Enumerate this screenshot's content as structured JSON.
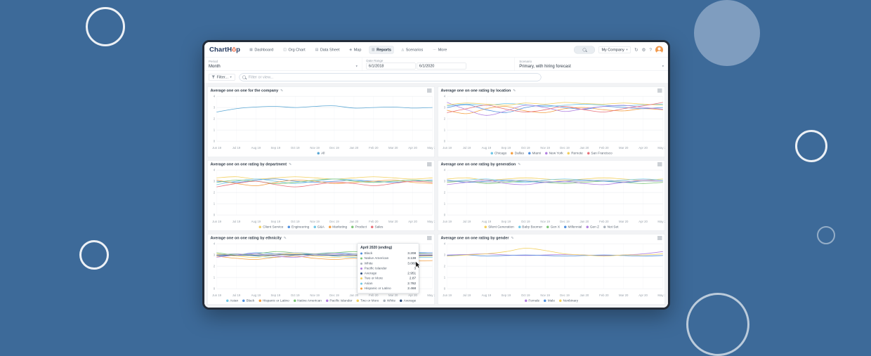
{
  "colors": {
    "accent": "#f1633a",
    "background": "#3d6a99"
  },
  "icons": {
    "edit": "✎",
    "caret": "▾",
    "updates": "↻",
    "settings": "⚙",
    "help": "?"
  },
  "navbar": {
    "logo": {
      "text_primary": "ChartH",
      "text_accent": "ō",
      "text_end": "p"
    },
    "items": [
      {
        "label": "Dashboard",
        "icon_glyph": "▦"
      },
      {
        "label": "Org Chart",
        "icon_glyph": "◫"
      },
      {
        "label": "Data Sheet",
        "icon_glyph": "▤"
      },
      {
        "label": "Map",
        "icon_glyph": "◈"
      },
      {
        "label": "Reports",
        "icon_glyph": "▥"
      },
      {
        "label": "Scenarios",
        "icon_glyph": "◬"
      },
      {
        "label": "More",
        "icon_glyph": "⋯"
      }
    ],
    "active_item": "Reports",
    "company_button": "My Company"
  },
  "controls": {
    "period_label": "Period",
    "period_value": "Month",
    "date_range_label": "Date Range",
    "date_start": "6/1/2018",
    "date_end": "6/1/2020",
    "scenario_label": "Scenario",
    "scenario_value": "Primary, with hiring forecast"
  },
  "filter_bar": {
    "filter_button": "Filter...",
    "search_placeholder": "Filter or view..."
  },
  "chart_data": [
    {
      "type": "line",
      "title": "Average one on one for the company",
      "x": [
        "Jun 19",
        "Jul 19",
        "Aug 19",
        "Sep 19",
        "Oct 19",
        "Nov 19",
        "Dec 19",
        "Jan 20",
        "Feb 20",
        "Mar 20",
        "Apr 20",
        "May 20"
      ],
      "ylim": [
        0,
        4
      ],
      "yticks": [
        0,
        1,
        2,
        3,
        4
      ],
      "grid": true,
      "legend_position": "bottom",
      "series": [
        {
          "name": "All",
          "color": "#5aa7d4",
          "values": [
            2.6,
            2.9,
            3.05,
            3.1,
            3.0,
            3.1,
            3.15,
            2.95,
            3.0,
            3.05,
            2.95,
            3.0
          ]
        }
      ]
    },
    {
      "type": "line",
      "title": "Average one on one rating by location",
      "x": [
        "Jun 19",
        "Jul 19",
        "Aug 19",
        "Sep 19",
        "Oct 19",
        "Nov 19",
        "Dec 19",
        "Jan 20",
        "Feb 20",
        "Mar 20",
        "Apr 20",
        "May 20"
      ],
      "ylim": [
        0,
        4
      ],
      "yticks": [
        0,
        1,
        2,
        3,
        4
      ],
      "grid": true,
      "legend_position": "bottom",
      "series": [
        {
          "name": "Chicago",
          "color": "#6ec6e6",
          "values": [
            3.15,
            3.3,
            3.2,
            3.35,
            3.25,
            3.1,
            3.2,
            3.3,
            3.2,
            3.15,
            3.25,
            3.3
          ]
        },
        {
          "name": "Dallas",
          "color": "#f49f42",
          "values": [
            2.75,
            2.45,
            2.9,
            3.1,
            2.7,
            2.55,
            2.9,
            3.0,
            2.8,
            2.7,
            2.9,
            2.8
          ]
        },
        {
          "name": "Miami",
          "color": "#4f8fde",
          "values": [
            3.0,
            3.25,
            2.8,
            2.55,
            3.0,
            3.2,
            3.0,
            2.85,
            3.1,
            3.0,
            2.9,
            3.0
          ]
        },
        {
          "name": "New York",
          "color": "#b07fe0",
          "values": [
            3.45,
            2.8,
            2.3,
            2.7,
            3.2,
            3.0,
            2.65,
            2.9,
            3.1,
            3.2,
            3.0,
            2.85
          ]
        },
        {
          "name": "Remote",
          "color": "#f2cf5b",
          "values": [
            3.25,
            3.4,
            3.3,
            3.2,
            3.4,
            3.3,
            3.45,
            3.35,
            3.3,
            3.4,
            3.3,
            3.2
          ]
        },
        {
          "name": "San Francisco",
          "color": "#e8707a",
          "values": [
            2.55,
            2.9,
            3.2,
            2.85,
            2.6,
            2.8,
            3.1,
            2.8,
            2.6,
            2.9,
            3.15,
            3.45
          ]
        }
      ]
    },
    {
      "type": "line",
      "title": "Average one on one rating by department",
      "x": [
        "Jun 19",
        "Jul 19",
        "Aug 19",
        "Sep 19",
        "Oct 19",
        "Nov 19",
        "Dec 19",
        "Jan 20",
        "Feb 20",
        "Mar 20",
        "Apr 20",
        "May 20"
      ],
      "ylim": [
        0,
        4
      ],
      "yticks": [
        0,
        1,
        2,
        3,
        4
      ],
      "grid": true,
      "legend_position": "bottom",
      "series": [
        {
          "name": "Client Service",
          "color": "#f2cf5b",
          "values": [
            3.3,
            3.4,
            3.2,
            3.3,
            3.4,
            3.3,
            3.2,
            3.3,
            3.4,
            3.3,
            3.2,
            3.3
          ]
        },
        {
          "name": "Engineering",
          "color": "#4f8fde",
          "values": [
            3.0,
            2.9,
            3.1,
            3.2,
            3.0,
            2.9,
            3.0,
            3.1,
            3.0,
            2.9,
            3.0,
            3.1
          ]
        },
        {
          "name": "G&A",
          "color": "#6ec6e6",
          "values": [
            2.7,
            3.0,
            3.2,
            3.0,
            2.8,
            3.0,
            3.2,
            3.1,
            2.9,
            3.0,
            3.1,
            3.0
          ]
        },
        {
          "name": "Marketing",
          "color": "#f49f42",
          "values": [
            3.1,
            2.8,
            2.6,
            2.9,
            3.1,
            3.0,
            2.8,
            2.9,
            3.0,
            3.1,
            2.9,
            2.8
          ]
        },
        {
          "name": "Product",
          "color": "#7cc576",
          "values": [
            2.9,
            3.1,
            3.0,
            2.8,
            2.9,
            3.1,
            3.2,
            3.0,
            2.9,
            3.0,
            3.1,
            3.0
          ]
        },
        {
          "name": "Sales",
          "color": "#e8707a",
          "values": [
            2.5,
            2.8,
            3.0,
            2.7,
            2.5,
            2.7,
            2.9,
            2.8,
            2.6,
            2.8,
            3.0,
            2.9
          ]
        }
      ]
    },
    {
      "type": "line",
      "title": "Average one on one rating by generation",
      "x": [
        "Jun 19",
        "Jul 19",
        "Aug 19",
        "Sep 19",
        "Oct 19",
        "Nov 19",
        "Dec 19",
        "Jan 20",
        "Feb 20",
        "Mar 20",
        "Apr 20",
        "May 20"
      ],
      "ylim": [
        0,
        4
      ],
      "yticks": [
        0,
        1,
        2,
        3,
        4
      ],
      "grid": true,
      "legend_position": "bottom",
      "series": [
        {
          "name": "Silent Generation",
          "color": "#f2cf5b",
          "values": [
            3.2,
            3.3,
            3.1,
            3.2,
            3.3,
            3.2,
            3.1,
            3.2,
            3.3,
            3.2,
            3.1,
            3.2
          ]
        },
        {
          "name": "Baby Boomer",
          "color": "#6ec6e6",
          "values": [
            3.0,
            3.1,
            3.2,
            3.0,
            2.9,
            3.1,
            3.2,
            3.1,
            3.0,
            3.1,
            3.2,
            3.1
          ]
        },
        {
          "name": "Gen X",
          "color": "#7cc576",
          "values": [
            2.9,
            3.0,
            2.8,
            2.9,
            3.0,
            2.9,
            2.8,
            2.9,
            3.0,
            2.9,
            2.8,
            2.9
          ]
        },
        {
          "name": "Millennial",
          "color": "#4f8fde",
          "values": [
            3.1,
            2.9,
            3.0,
            3.1,
            3.0,
            2.9,
            3.0,
            3.1,
            3.0,
            2.9,
            3.0,
            3.0
          ]
        },
        {
          "name": "Gen Z",
          "color": "#b07fe0",
          "values": [
            2.7,
            2.9,
            3.1,
            2.8,
            2.7,
            2.9,
            3.0,
            2.8,
            2.7,
            2.9,
            3.1,
            3.0
          ]
        },
        {
          "name": "Not Set",
          "color": "#a9b2bc",
          "values": [
            3.0,
            3.0,
            2.9,
            3.0,
            3.1,
            3.0,
            2.9,
            3.0,
            3.1,
            3.0,
            3.0,
            3.0
          ]
        }
      ]
    },
    {
      "type": "line",
      "title": "Average one on one rating by ethnicity",
      "x": [
        "Jun 19",
        "Jul 19",
        "Aug 19",
        "Sep 19",
        "Oct 19",
        "Nov 19",
        "Dec 19",
        "Jan 20",
        "Feb 20",
        "Mar 20",
        "Apr 20",
        "May 20"
      ],
      "ylim": [
        0,
        4
      ],
      "yticks": [
        0,
        1,
        2,
        3,
        4
      ],
      "grid": true,
      "legend_position": "bottom",
      "series": [
        {
          "name": "Asian",
          "color": "#6ec6e6",
          "values": [
            3.0,
            3.1,
            2.9,
            2.8,
            3.0,
            3.1,
            2.9,
            2.8,
            2.9,
            2.85,
            2.78,
            2.8
          ]
        },
        {
          "name": "Black",
          "color": "#4f8fde",
          "values": [
            2.9,
            3.0,
            3.2,
            3.1,
            3.0,
            3.1,
            3.2,
            3.1,
            3.0,
            3.1,
            3.21,
            3.2
          ]
        },
        {
          "name": "Hispanic or Latino",
          "color": "#f49f42",
          "values": [
            2.9,
            2.7,
            2.6,
            2.8,
            2.9,
            2.7,
            2.6,
            2.7,
            2.6,
            2.5,
            2.47,
            2.5
          ]
        },
        {
          "name": "Native American",
          "color": "#7cc576",
          "values": [
            3.2,
            3.0,
            3.1,
            3.3,
            3.2,
            3.1,
            3.2,
            3.3,
            3.2,
            3.1,
            3.14,
            3.1
          ]
        },
        {
          "name": "Pacific Islander",
          "color": "#b07fe0",
          "values": [
            2.8,
            3.0,
            3.1,
            2.9,
            2.8,
            3.0,
            3.1,
            3.0,
            2.9,
            3.0,
            3.0,
            3.0
          ]
        },
        {
          "name": "Two or More",
          "color": "#f2cf5b",
          "values": [
            3.1,
            2.9,
            2.8,
            3.0,
            3.1,
            2.9,
            2.8,
            2.9,
            3.0,
            2.9,
            2.87,
            2.9
          ]
        },
        {
          "name": "White",
          "color": "#a9b2bc",
          "values": [
            3.0,
            3.1,
            3.0,
            3.1,
            3.2,
            3.1,
            3.0,
            3.1,
            3.0,
            3.1,
            3.09,
            3.1
          ]
        },
        {
          "name": "Average",
          "color": "#2e4e7e",
          "values": [
            2.99,
            2.99,
            2.96,
            3.0,
            3.03,
            3.0,
            2.96,
            2.99,
            2.95,
            2.94,
            2.95,
            2.96
          ]
        }
      ]
    },
    {
      "type": "line",
      "title": "Average one on one rating by gender",
      "x": [
        "Jun 19",
        "Jul 19",
        "Aug 19",
        "Sep 19",
        "Oct 19",
        "Nov 19",
        "Dec 19",
        "Jan 20",
        "Feb 20",
        "Mar 20",
        "Apr 20",
        "May 20"
      ],
      "ylim": [
        0,
        4
      ],
      "yticks": [
        0,
        1,
        2,
        3,
        4
      ],
      "grid": true,
      "legend_position": "bottom",
      "series": [
        {
          "name": "Female",
          "color": "#b07fe0",
          "values": [
            3.0,
            3.05,
            3.1,
            3.0,
            2.95,
            3.0,
            3.05,
            3.0,
            2.95,
            3.0,
            3.1,
            3.3
          ]
        },
        {
          "name": "Male",
          "color": "#4f8fde",
          "values": [
            2.95,
            3.0,
            2.9,
            2.95,
            3.0,
            2.95,
            2.9,
            2.95,
            3.0,
            2.95,
            2.9,
            2.95
          ]
        },
        {
          "name": "Nonbinary",
          "color": "#f2cf5b",
          "values": [
            2.9,
            3.0,
            3.1,
            3.3,
            3.6,
            3.4,
            3.1,
            3.0,
            2.9,
            3.0,
            3.0,
            3.1
          ]
        }
      ]
    }
  ],
  "tooltip": {
    "chart_index": 4,
    "title": "April 2020 (ending)",
    "rows": [
      {
        "label": "Black",
        "value": "3.208",
        "color": "#4f8fde"
      },
      {
        "label": "Native American",
        "value": "3.138",
        "color": "#7cc576"
      },
      {
        "label": "White",
        "value": "3.089",
        "color": "#a9b2bc"
      },
      {
        "label": "Pacific Islander",
        "value": "3",
        "color": "#b07fe0"
      },
      {
        "label": "Average",
        "value": "2.951",
        "color": "#2e4e7e"
      },
      {
        "label": "Two or More",
        "value": "2.87",
        "color": "#f2cf5b"
      },
      {
        "label": "Asian",
        "value": "2.782",
        "color": "#6ec6e6"
      },
      {
        "label": "Hispanic or Latino",
        "value": "2.468",
        "color": "#f49f42"
      }
    ]
  }
}
